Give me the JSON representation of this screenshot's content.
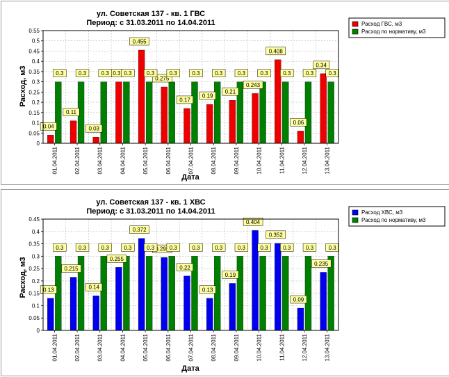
{
  "chart_data": [
    {
      "type": "bar",
      "title": "ул. Советская 137 - кв. 1 ГВС",
      "subtitle": "Период: с 31.03.2011 по 14.04.2011",
      "xlabel": "Дата",
      "ylabel": "Расход, м3",
      "ylim": [
        0,
        0.55
      ],
      "yticks": [
        "0",
        "0.05",
        "0.1",
        "0.15",
        "0.2",
        "0.25",
        "0.3",
        "0.35",
        "0.4",
        "0.45",
        "0.5",
        "0.55"
      ],
      "ytick_step": 0.05,
      "grid": true,
      "legend_position": "top-right",
      "categories": [
        "01.04.2011",
        "02.04.2011",
        "03.04.2011",
        "04.04.2011",
        "05.04.2011",
        "06.04.2011",
        "07.04.2011",
        "08.04.2011",
        "09.04.2011",
        "10.04.2011",
        "11.04.2011",
        "12.04.2011",
        "13.04.2011"
      ],
      "series": [
        {
          "name": "Расход ГВС, м3",
          "color": "#ee0000",
          "values": [
            0.04,
            0.11,
            0.03,
            0.3,
            0.455,
            0.275,
            0.17,
            0.19,
            0.21,
            0.243,
            0.408,
            0.06,
            0.34
          ],
          "labels": [
            "0.04",
            "0.11",
            "0.03",
            "0.3",
            "0.455",
            "0.275",
            "0.17",
            "0.19",
            "0.21",
            "0.243",
            "0.408",
            "0.06",
            "0.34"
          ]
        },
        {
          "name": "Расход по нормативу, м3",
          "color": "#008000",
          "values": [
            0.3,
            0.3,
            0.3,
            0.3,
            0.3,
            0.3,
            0.3,
            0.3,
            0.3,
            0.3,
            0.3,
            0.3,
            0.3
          ],
          "labels": [
            "0.3",
            "0.3",
            "0.3",
            "0.3",
            "0.3",
            "0.3",
            "0.3",
            "0.3",
            "0.3",
            "0.3",
            "0.3",
            "0.3",
            "0.3"
          ]
        }
      ]
    },
    {
      "type": "bar",
      "title": "ул. Советская 137 - кв. 1 ХВС",
      "subtitle": "Период: с 31.03.2011 по 14.04.2011",
      "xlabel": "Дата",
      "ylabel": "Расход, м3",
      "ylim": [
        0,
        0.45
      ],
      "yticks": [
        "0",
        "0.05",
        "0.1",
        "0.15",
        "0.2",
        "0.25",
        "0.3",
        "0.35",
        "0.4",
        "0.45"
      ],
      "ytick_step": 0.05,
      "grid": true,
      "legend_position": "top-right",
      "categories": [
        "01.04.2011",
        "02.04.2011",
        "03.04.2011",
        "04.04.2011",
        "05.04.2011",
        "06.04.2011",
        "07.04.2011",
        "08.04.2011",
        "09.04.2011",
        "10.04.2011",
        "11.04.2011",
        "12.04.2011",
        "13.04.2011"
      ],
      "series": [
        {
          "name": "Расход ХВС, м3",
          "color": "#0000ee",
          "values": [
            0.13,
            0.215,
            0.14,
            0.255,
            0.372,
            0.295,
            0.22,
            0.13,
            0.19,
            0.404,
            0.352,
            0.09,
            0.235
          ],
          "labels": [
            "0.13",
            "0.215",
            "0.14",
            "0.255",
            "0.372",
            "0.295",
            "0.22",
            "0.13",
            "0.19",
            "0.404",
            "0.352",
            "0.09",
            "0.235"
          ]
        },
        {
          "name": "Расход по нормативу, м3",
          "color": "#008000",
          "values": [
            0.3,
            0.3,
            0.3,
            0.3,
            0.3,
            0.3,
            0.3,
            0.3,
            0.3,
            0.3,
            0.3,
            0.3,
            0.3
          ],
          "labels": [
            "0.3",
            "0.3",
            "0.3",
            "0.3",
            "0.3",
            "0.3",
            "0.3",
            "0.3",
            "0.3",
            "0.3",
            "0.3",
            "0.3",
            "0.3"
          ]
        }
      ]
    }
  ]
}
